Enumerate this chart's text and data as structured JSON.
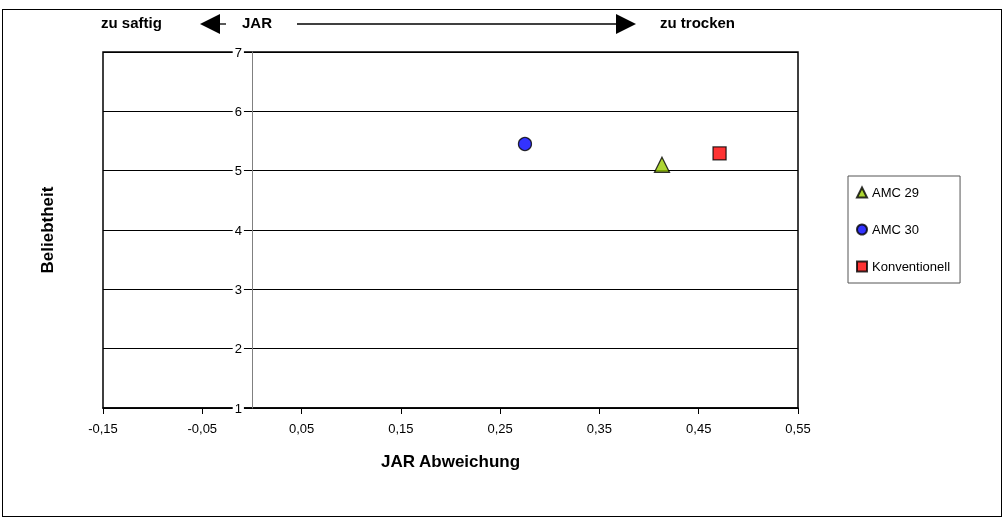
{
  "chart_data": {
    "type": "scatter",
    "xlabel": "JAR Abweichung",
    "ylabel": "Beliebtheit",
    "annotations": [
      "zu saftig",
      "JAR",
      "zu trocken"
    ],
    "xlim": [
      -0.15,
      0.55
    ],
    "xticks": [
      {
        "value": -0.15,
        "label": "-0,15"
      },
      {
        "value": -0.05,
        "label": "-0,05"
      },
      {
        "value": 0.05,
        "label": "0,05"
      },
      {
        "value": 0.15,
        "label": "0,15"
      },
      {
        "value": 0.25,
        "label": "0,25"
      },
      {
        "value": 0.35,
        "label": "0,35"
      },
      {
        "value": 0.45,
        "label": "0,45"
      },
      {
        "value": 0.55,
        "label": "0,55"
      }
    ],
    "ylim": [
      1,
      7
    ],
    "yticks": [
      1,
      2,
      3,
      4,
      5,
      6,
      7
    ],
    "grid": "y",
    "legend": "right",
    "series": [
      {
        "name": "AMC 29",
        "color": "#99cc00",
        "marker": "triangle",
        "x": [
          0.413
        ],
        "values": [
          5.1
        ]
      },
      {
        "name": "AMC 30",
        "color": "#0000ff",
        "marker": "circle",
        "x": [
          0.275
        ],
        "values": [
          5.45
        ]
      },
      {
        "name": "Konventionell",
        "color": "#ff0000",
        "marker": "square",
        "x": [
          0.471
        ],
        "values": [
          5.29
        ]
      }
    ]
  }
}
